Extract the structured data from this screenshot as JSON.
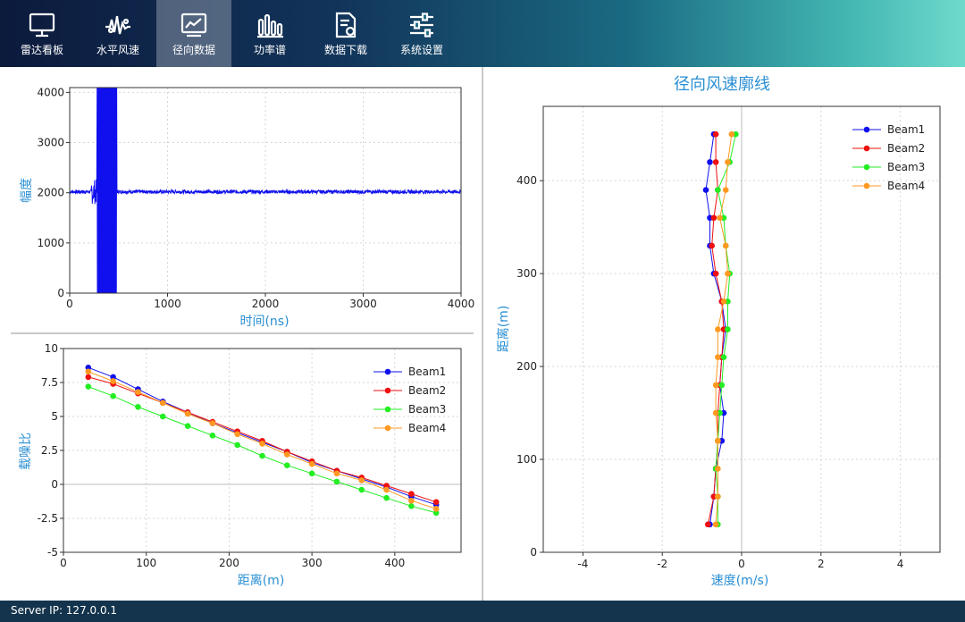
{
  "nav": {
    "items": [
      {
        "label": "雷达看板",
        "icon": "monitor-icon"
      },
      {
        "label": "水平风速",
        "icon": "wave-icon"
      },
      {
        "label": "径向数据",
        "icon": "chart-icon"
      },
      {
        "label": "功率谱",
        "icon": "bars-icon"
      },
      {
        "label": "数据下载",
        "icon": "download-file-icon"
      },
      {
        "label": "系统设置",
        "icon": "sliders-icon"
      }
    ],
    "active_index": 2
  },
  "footer": {
    "server_ip": "Server IP: 127.0.0.1"
  },
  "colors": {
    "beam1": "#1010ee",
    "beam2": "#ee1010",
    "beam3": "#22ee22",
    "beam4": "#ff9922",
    "axis_label": "#2a8fd4"
  },
  "chart_data": [
    {
      "type": "line",
      "title": "",
      "xlabel": "时间(ns)",
      "ylabel": "幅度",
      "xlim": [
        0,
        4000
      ],
      "ylim": [
        0,
        4096
      ],
      "xticks": [
        "0",
        "1000",
        "2000",
        "3000",
        "4000"
      ],
      "yticks": [
        "0",
        "1000",
        "2000",
        "3000",
        "4000"
      ],
      "grid": true,
      "series": [
        {
          "values_description_only": false,
          "baseline": 2020,
          "burst_range_ns": [
            280,
            480
          ]
        }
      ]
    },
    {
      "type": "line",
      "title": "",
      "xlabel": "距离(m)",
      "ylabel": "载噪比",
      "xlim": [
        0,
        480
      ],
      "ylim": [
        -5,
        10
      ],
      "xticks": [
        "0",
        "100",
        "200",
        "300",
        "400"
      ],
      "yticks": [
        "-5",
        "-2.5",
        "0",
        "2.5",
        "5",
        "7.5",
        "10"
      ],
      "grid": true,
      "legend": "top-right",
      "x": [
        30,
        60,
        90,
        120,
        150,
        180,
        210,
        240,
        270,
        300,
        330,
        360,
        390,
        420,
        450
      ],
      "series": [
        {
          "name": "Beam1",
          "values": [
            8.6,
            7.9,
            7.0,
            6.1,
            5.3,
            4.5,
            3.8,
            3.1,
            2.4,
            1.6,
            1.0,
            0.4,
            -0.2,
            -0.9,
            -1.5
          ]
        },
        {
          "name": "Beam2",
          "values": [
            7.9,
            7.4,
            6.7,
            6.0,
            5.3,
            4.6,
            3.9,
            3.2,
            2.4,
            1.7,
            1.0,
            0.5,
            -0.1,
            -0.7,
            -1.3
          ]
        },
        {
          "name": "Beam3",
          "values": [
            7.2,
            6.5,
            5.7,
            5.0,
            4.3,
            3.6,
            2.9,
            2.1,
            1.4,
            0.8,
            0.2,
            -0.4,
            -1.0,
            -1.6,
            -2.1
          ]
        },
        {
          "name": "Beam4",
          "values": [
            8.3,
            7.6,
            6.8,
            6.0,
            5.2,
            4.5,
            3.7,
            3.0,
            2.2,
            1.5,
            0.8,
            0.3,
            -0.4,
            -1.2,
            -1.8
          ]
        }
      ]
    },
    {
      "type": "line",
      "title": "径向风速廓线",
      "xlabel": "速度(m/s)",
      "ylabel": "距离(m)",
      "xlim": [
        -5,
        5
      ],
      "ylim": [
        0,
        480
      ],
      "xticks": [
        "-4",
        "-2",
        "0",
        "2",
        "4"
      ],
      "yticks": [
        "0",
        "100",
        "200",
        "300",
        "400"
      ],
      "grid": true,
      "legend": "top-right",
      "y": [
        30,
        60,
        90,
        120,
        150,
        180,
        210,
        240,
        270,
        300,
        330,
        360,
        390,
        420,
        450
      ],
      "series": [
        {
          "name": "Beam1",
          "values": [
            -0.8,
            -0.7,
            -0.65,
            -0.5,
            -0.45,
            -0.55,
            -0.5,
            -0.4,
            -0.5,
            -0.7,
            -0.8,
            -0.8,
            -0.9,
            -0.8,
            -0.7
          ]
        },
        {
          "name": "Beam2",
          "values": [
            -0.85,
            -0.7,
            -0.65,
            -0.6,
            -0.6,
            -0.55,
            -0.5,
            -0.45,
            -0.5,
            -0.65,
            -0.75,
            -0.7,
            -0.6,
            -0.65,
            -0.65
          ]
        },
        {
          "name": "Beam3",
          "values": [
            -0.6,
            -0.6,
            -0.65,
            -0.6,
            -0.55,
            -0.5,
            -0.45,
            -0.35,
            -0.35,
            -0.3,
            -0.4,
            -0.45,
            -0.6,
            -0.3,
            -0.15
          ]
        },
        {
          "name": "Beam4",
          "values": [
            -0.65,
            -0.6,
            -0.6,
            -0.6,
            -0.65,
            -0.65,
            -0.6,
            -0.6,
            -0.45,
            -0.35,
            -0.4,
            -0.55,
            -0.4,
            -0.35,
            -0.25
          ]
        }
      ]
    }
  ]
}
